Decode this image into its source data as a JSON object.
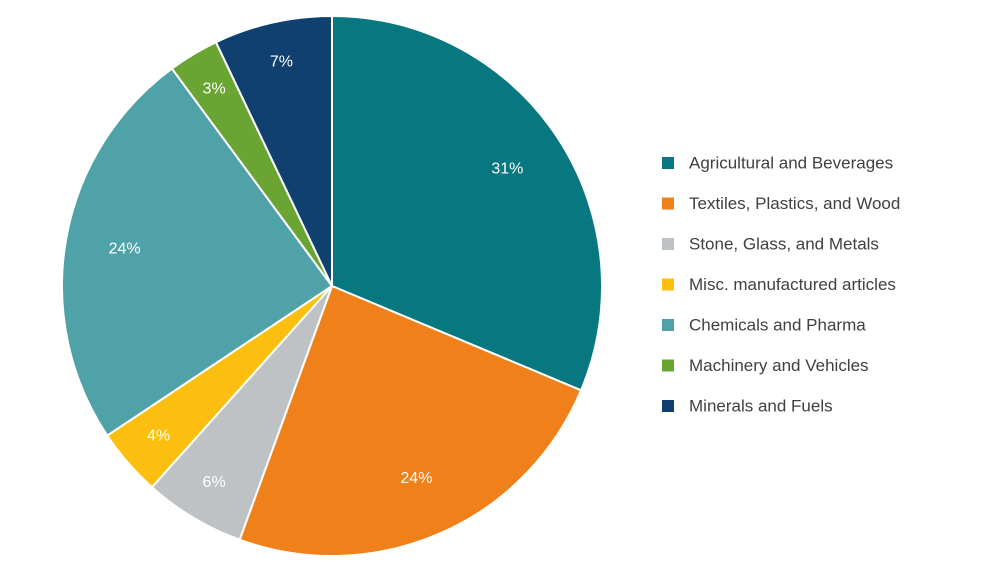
{
  "chart_data": {
    "type": "pie",
    "title": "",
    "legend_position": "right",
    "slices": [
      {
        "label": "Agricultural and Beverages",
        "value": 31,
        "display": "31%",
        "color": "#077880"
      },
      {
        "label": "Textiles, Plastics, and Wood",
        "value": 24,
        "display": "24%",
        "color": "#F0811A"
      },
      {
        "label": "Stone, Glass, and Metals",
        "value": 6,
        "display": "6%",
        "color": "#BEC2C4"
      },
      {
        "label": "Misc. manufactured articles",
        "value": 4,
        "display": "4%",
        "color": "#FDBF0F"
      },
      {
        "label": "Chemicals and Pharma",
        "value": 24,
        "display": "24%",
        "color": "#4FA3A8"
      },
      {
        "label": "Machinery and Vehicles",
        "value": 3,
        "display": "3%",
        "color": "#6AA533"
      },
      {
        "label": "Minerals and Fuels",
        "value": 7,
        "display": "7%",
        "color": "#10406F"
      }
    ]
  }
}
